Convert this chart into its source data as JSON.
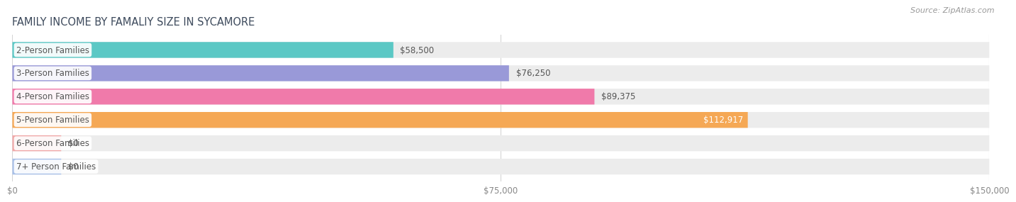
{
  "title": "FAMILY INCOME BY FAMALIY SIZE IN SYCAMORE",
  "source": "Source: ZipAtlas.com",
  "categories": [
    "2-Person Families",
    "3-Person Families",
    "4-Person Families",
    "5-Person Families",
    "6-Person Families",
    "7+ Person Families"
  ],
  "values": [
    58500,
    76250,
    89375,
    112917,
    0,
    0
  ],
  "bar_colors": [
    "#5bc8c5",
    "#9999d8",
    "#f07aaa",
    "#f5a855",
    "#f0a8a8",
    "#a8c0e8"
  ],
  "value_inside": [
    false,
    false,
    false,
    true,
    false,
    false
  ],
  "value_labels": [
    "$58,500",
    "$76,250",
    "$89,375",
    "$112,917",
    "$0",
    "$0"
  ],
  "xlim": [
    0,
    150000
  ],
  "xticks": [
    0,
    75000,
    150000
  ],
  "xticklabels": [
    "$0",
    "$75,000",
    "$150,000"
  ],
  "bg_color": "#ffffff",
  "bar_bg_color": "#ececec",
  "title_fontsize": 10.5,
  "label_fontsize": 8.5,
  "value_fontsize": 8.5,
  "source_fontsize": 8,
  "title_color": "#3d4a5c",
  "label_text_color": "#555555",
  "value_text_color": "#555555",
  "value_inside_color": "#ffffff",
  "grid_color": "#d5d5d5",
  "tick_color": "#888888"
}
